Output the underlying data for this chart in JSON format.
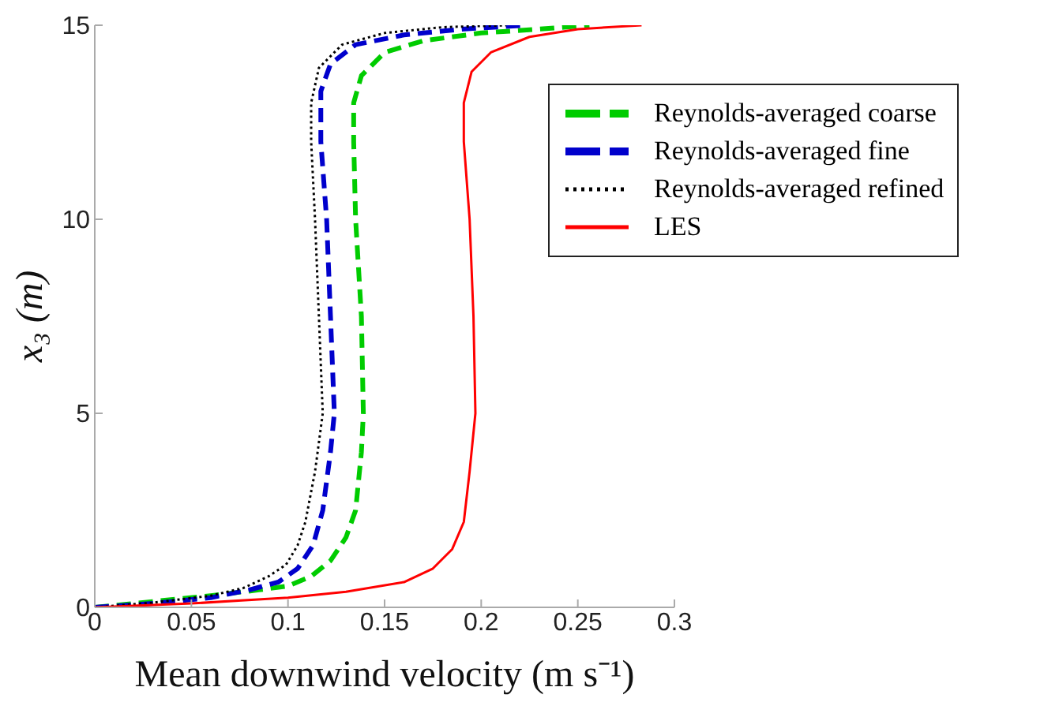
{
  "chart_data": {
    "type": "line",
    "xlabel": "Mean downwind velocity (m s⁻¹)",
    "ylabel": "x₃ (m)",
    "xlim": [
      0,
      0.3
    ],
    "xticks": [
      0,
      0.05,
      0.1,
      0.15,
      0.2,
      0.25,
      0.3
    ],
    "ylim": [
      0,
      15
    ],
    "yticks": [
      0,
      5,
      10,
      15
    ],
    "grid": false,
    "legend": "top right",
    "marker": "none",
    "series": [
      {
        "name": "Reynolds-averaged coarse",
        "color": "#00cc00",
        "line_style": "dashed",
        "x": [
          0,
          0.03,
          0.06,
          0.085,
          0.1,
          0.112,
          0.122,
          0.13,
          0.135,
          0.138,
          0.139,
          0.138,
          0.135,
          0.134,
          0.134,
          0.138,
          0.15,
          0.17,
          0.2,
          0.23,
          0.256
        ],
        "values": [
          0,
          0.15,
          0.3,
          0.45,
          0.55,
          0.8,
          1.2,
          1.8,
          2.5,
          4,
          5,
          7.5,
          10,
          12,
          13,
          13.7,
          14.3,
          14.6,
          14.8,
          14.9,
          15
        ]
      },
      {
        "name": "Reynolds-averaged fine",
        "color": "#0000cc",
        "line_style": "dashed",
        "x": [
          0,
          0.03,
          0.06,
          0.08,
          0.095,
          0.105,
          0.113,
          0.118,
          0.122,
          0.124,
          0.122,
          0.12,
          0.117,
          0.117,
          0.122,
          0.135,
          0.16,
          0.19,
          0.223
        ],
        "values": [
          0,
          0.1,
          0.25,
          0.45,
          0.65,
          1,
          1.6,
          2.5,
          4,
          5,
          7.5,
          10,
          12,
          13.3,
          14,
          14.5,
          14.75,
          14.9,
          15
        ]
      },
      {
        "name": "Reynolds-averaged refined",
        "color": "#000000",
        "line_style": "dotted",
        "x": [
          0,
          0.03,
          0.06,
          0.077,
          0.09,
          0.099,
          0.105,
          0.109,
          0.114,
          0.118,
          0.116,
          0.114,
          0.112,
          0.112,
          0.116,
          0.128,
          0.15,
          0.18,
          0.213
        ],
        "values": [
          0,
          0.12,
          0.3,
          0.5,
          0.8,
          1.1,
          1.6,
          2.2,
          3.5,
          5,
          7.5,
          10,
          12,
          13,
          13.9,
          14.5,
          14.8,
          14.95,
          15
        ]
      },
      {
        "name": "LES",
        "color": "#ff0000",
        "line_style": "solid",
        "x": [
          0,
          0.05,
          0.1,
          0.13,
          0.16,
          0.175,
          0.185,
          0.191,
          0.194,
          0.197,
          0.196,
          0.194,
          0.191,
          0.191,
          0.195,
          0.205,
          0.225,
          0.25,
          0.283
        ],
        "values": [
          0,
          0.1,
          0.25,
          0.4,
          0.65,
          1,
          1.5,
          2.2,
          3.5,
          5,
          7.5,
          10,
          12,
          13,
          13.8,
          14.3,
          14.7,
          14.9,
          15
        ]
      }
    ]
  }
}
